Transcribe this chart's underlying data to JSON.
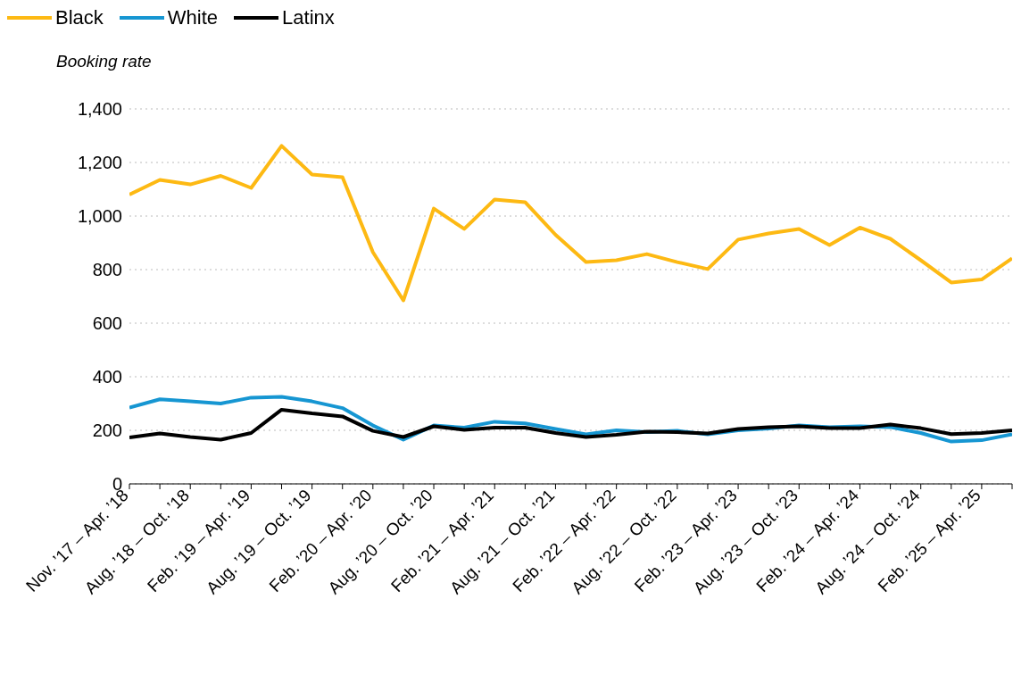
{
  "chart_data": {
    "type": "line",
    "ylabel": "Booking rate",
    "categories": [
      "Nov. ’17 – Apr. ’18",
      null,
      "Aug. ’18 – Oct. ’18",
      null,
      "Feb. ’19 – Apr. ’19",
      null,
      "Aug. ’19 – Oct. ’19",
      null,
      "Feb. ’20 – Apr. ’20",
      null,
      "Aug. ’20 – Oct. ’20",
      null,
      "Feb. ’21 – Apr. ’21",
      null,
      "Aug. ’21 – Oct. ’21",
      null,
      "Feb. ’22 – Apr. ’22",
      null,
      "Aug. ’22 – Oct. ’22",
      null,
      "Feb. ’23 – Apr. ’23",
      null,
      "Aug. ’23 – Oct. ’23",
      null,
      "Feb. ’24 – Apr. ’24",
      null,
      "Aug. ’24 – Oct. ’24",
      null,
      "Feb. ’25 – Apr. ’25",
      null
    ],
    "series": [
      {
        "name": "Black",
        "color": "#fdb913",
        "values": [
          1080,
          1135,
          1118,
          1150,
          1105,
          1262,
          1155,
          1145,
          865,
          685,
          1028,
          952,
          1062,
          1052,
          930,
          828,
          835,
          858,
          828,
          802,
          912,
          935,
          952,
          892,
          957,
          915,
          835,
          752,
          763,
          842
        ]
      },
      {
        "name": "White",
        "color": "#1696d2",
        "values": [
          285,
          316,
          308,
          300,
          322,
          325,
          308,
          283,
          218,
          165,
          218,
          210,
          232,
          226,
          205,
          185,
          200,
          193,
          198,
          185,
          200,
          207,
          218,
          212,
          215,
          212,
          190,
          158,
          163,
          185
        ]
      },
      {
        "name": "Latinx",
        "color": "#000000",
        "values": [
          173,
          188,
          175,
          165,
          190,
          277,
          263,
          252,
          198,
          175,
          215,
          202,
          210,
          210,
          190,
          175,
          183,
          195,
          193,
          188,
          205,
          212,
          215,
          208,
          208,
          222,
          208,
          186,
          190,
          200
        ]
      }
    ],
    "ylim": [
      0,
      1400
    ],
    "yticks": [
      0,
      200,
      400,
      600,
      800,
      {
        "value": 1000,
        "label": "1,000"
      },
      {
        "value": 1200,
        "label": "1,200"
      },
      {
        "value": 1400,
        "label": "1,400"
      }
    ],
    "grid": "y",
    "legend": "top left",
    "line_style": "solid"
  }
}
